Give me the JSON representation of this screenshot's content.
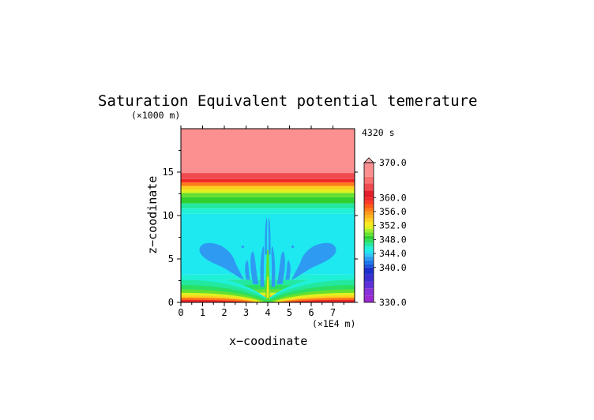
{
  "chart_data": {
    "type": "heatmap",
    "title": "Saturation Equivalent potential temerature",
    "y_unit": "(×1000 m)",
    "x_unit": "(×1E4 m)",
    "xlabel": "x−coodinate",
    "ylabel": "z−coodinate",
    "time_label": "4320 s",
    "xlim": [
      0,
      8
    ],
    "ylim": [
      0,
      20
    ],
    "x_ticks": [
      "0",
      "1",
      "2",
      "3",
      "4",
      "5",
      "6",
      "7"
    ],
    "y_ticks": [
      "0",
      "5",
      "10",
      "15"
    ],
    "colorbar": {
      "range": [
        330,
        370
      ],
      "labels": [
        "370.0",
        "360.0",
        "356.0",
        "352.0",
        "348.0",
        "344.0",
        "340.0",
        "330.0"
      ],
      "levels": [
        {
          "v": 330,
          "color": "#9a2bd0"
        },
        {
          "v": 332,
          "color": "#8a30d8"
        },
        {
          "v": 334,
          "color": "#6030d8"
        },
        {
          "v": 336,
          "color": "#3a2fd0"
        },
        {
          "v": 338,
          "color": "#1c30cc"
        },
        {
          "v": 340,
          "color": "#1656dc"
        },
        {
          "v": 341,
          "color": "#1a78ec"
        },
        {
          "v": 342,
          "color": "#2e9af2"
        },
        {
          "v": 343,
          "color": "#34c4f6"
        },
        {
          "v": 344,
          "color": "#1ee8f0"
        },
        {
          "v": 345,
          "color": "#20f0d8"
        },
        {
          "v": 346,
          "color": "#22e8a0"
        },
        {
          "v": 347,
          "color": "#2ae062"
        },
        {
          "v": 348,
          "color": "#30d030"
        },
        {
          "v": 349,
          "color": "#66e030"
        },
        {
          "v": 350,
          "color": "#a0f030"
        },
        {
          "v": 351,
          "color": "#e0f020"
        },
        {
          "v": 352,
          "color": "#f8e818"
        },
        {
          "v": 353,
          "color": "#ffd020"
        },
        {
          "v": 354,
          "color": "#ffb418"
        },
        {
          "v": 355,
          "color": "#ff9a18"
        },
        {
          "v": 356,
          "color": "#ff7a18"
        },
        {
          "v": 357,
          "color": "#ff5a18"
        },
        {
          "v": 358,
          "color": "#ff3a22"
        },
        {
          "v": 359,
          "color": "#f02828"
        },
        {
          "v": 360,
          "color": "#e41e2a"
        },
        {
          "v": 362,
          "color": "#f04a50"
        },
        {
          "v": 364,
          "color": "#f87070"
        },
        {
          "v": 366,
          "color": "#fc9090"
        },
        {
          "v": 370,
          "color": "#ffb0b0"
        }
      ]
    },
    "bands": [
      {
        "z0": 14.9,
        "z1": 20.0,
        "v": 367
      },
      {
        "z0": 14.2,
        "z1": 14.9,
        "v": 362
      },
      {
        "z0": 13.8,
        "z1": 14.2,
        "v": 359
      },
      {
        "z0": 13.4,
        "z1": 13.8,
        "v": 356
      },
      {
        "z0": 13.0,
        "z1": 13.4,
        "v": 353
      },
      {
        "z0": 12.6,
        "z1": 13.0,
        "v": 351
      },
      {
        "z0": 12.1,
        "z1": 12.6,
        "v": 349
      },
      {
        "z0": 11.4,
        "z1": 12.1,
        "v": 348
      },
      {
        "z0": 10.8,
        "z1": 11.4,
        "v": 346
      },
      {
        "z0": 10.2,
        "z1": 10.8,
        "v": 345
      },
      {
        "z0": 3.2,
        "z1": 10.2,
        "v": 344
      },
      {
        "z0": 2.6,
        "z1": 3.2,
        "v": 345
      },
      {
        "z0": 2.0,
        "z1": 2.6,
        "v": 346
      },
      {
        "z0": 1.5,
        "z1": 2.0,
        "v": 347
      },
      {
        "z0": 1.1,
        "z1": 1.5,
        "v": 349
      },
      {
        "z0": 0.8,
        "z1": 1.1,
        "v": 351
      },
      {
        "z0": 0.55,
        "z1": 0.8,
        "v": 354
      },
      {
        "z0": 0.3,
        "z1": 0.55,
        "v": 357
      },
      {
        "z0": 0.0,
        "z1": 0.3,
        "v": 360
      }
    ],
    "grid": false
  }
}
